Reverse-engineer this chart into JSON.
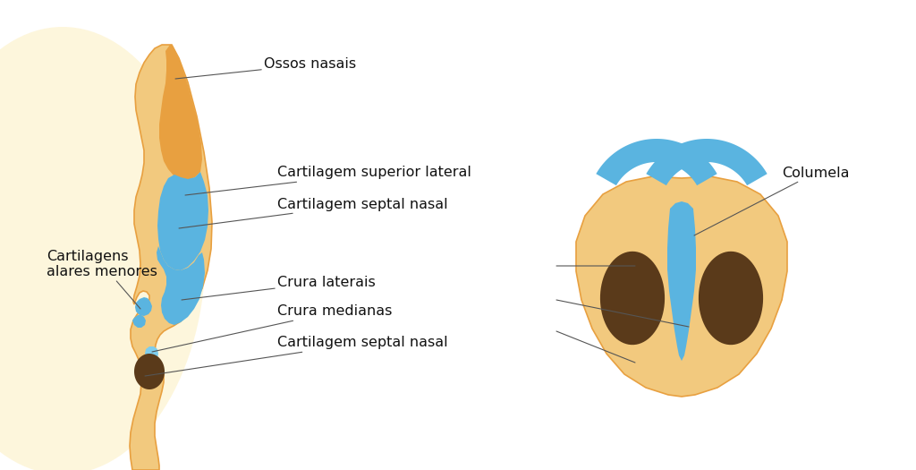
{
  "background_color": "#ffffff",
  "skin_color": "#f2c97e",
  "skin_dark": "#e8a040",
  "skin_darker": "#d4882a",
  "cartilage_color": "#5ab4e0",
  "cartilage_light": "#7ecded",
  "nostril_color": "#5a3a1a",
  "line_color": "#555555",
  "text_color": "#111111",
  "labels": {
    "ossos_nasais": "Ossos nasais",
    "cartilagem_superior": "Cartilagem superior lateral",
    "cartilagem_septal1": "Cartilagem septal nasal",
    "cartilagens_alares": "Cartilagens\nalares menores",
    "crura_laterais": "Crura laterais",
    "crura_medianas": "Crura medianas",
    "cartilagem_septal2": "Cartilagem septal nasal",
    "columela": "Columela"
  }
}
